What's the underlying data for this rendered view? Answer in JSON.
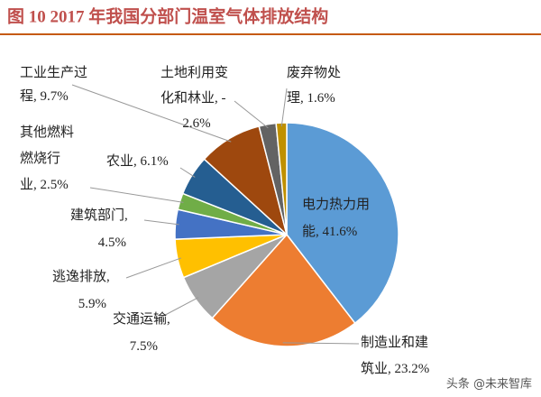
{
  "chart_data": {
    "type": "pie",
    "title": "图 10 2017 年我国分部门温室气体排放结构",
    "categories": [
      "电力热力用能",
      "制造业和建筑业",
      "交通运输",
      "逃逸排放",
      "建筑部门",
      "其他燃料燃烧行业",
      "农业",
      "工业生产过程",
      "土地利用变化和林业",
      "废弃物处理"
    ],
    "values": [
      41.6,
      23.2,
      7.5,
      5.9,
      4.5,
      2.5,
      6.1,
      9.7,
      -2.6,
      1.6
    ],
    "value_labels": [
      "41.6%",
      "23.2%",
      "7.5%",
      "5.9%",
      "4.5%",
      "2.5%",
      "6.1%",
      "9.7%",
      "-2.6%",
      "1.6%"
    ],
    "label_separator": ", ",
    "colors": [
      "#5b9bd5",
      "#ed7d31",
      "#a5a5a5",
      "#ffc000",
      "#4472c4",
      "#70ad47",
      "#255e91",
      "#9e480e",
      "#636363",
      "#bf9000"
    ],
    "watermark": "头条 @未来智库"
  }
}
